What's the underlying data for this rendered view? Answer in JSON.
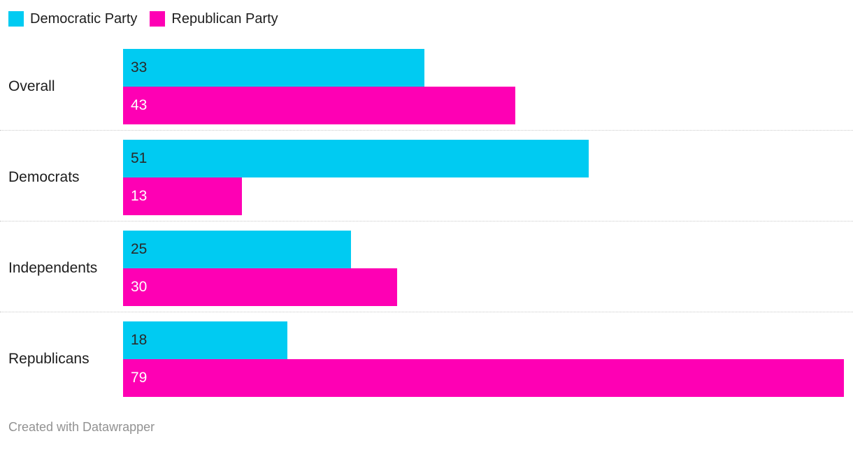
{
  "legend": {
    "items": [
      {
        "label": "Democratic Party",
        "color": "#00cbf2"
      },
      {
        "label": "Republican Party",
        "color": "#fe00b4"
      }
    ]
  },
  "chart_data": {
    "type": "bar",
    "orientation": "horizontal",
    "title": "",
    "categories": [
      "Overall",
      "Democrats",
      "Independents",
      "Republicans"
    ],
    "series": [
      {
        "name": "Democratic Party",
        "color": "#00cbf2",
        "value_label_color": "#2a2a2a",
        "values": [
          33,
          51,
          25,
          18
        ]
      },
      {
        "name": "Republican Party",
        "color": "#fe00b4",
        "value_label_color": "#ffffff",
        "values": [
          43,
          13,
          30,
          79
        ]
      }
    ],
    "value_labels_shown": true,
    "xlim": [
      0,
      80
    ],
    "grid": false,
    "legend_position": "top",
    "separator_style": "dotted"
  },
  "footer": {
    "text": "Created with Datawrapper"
  }
}
